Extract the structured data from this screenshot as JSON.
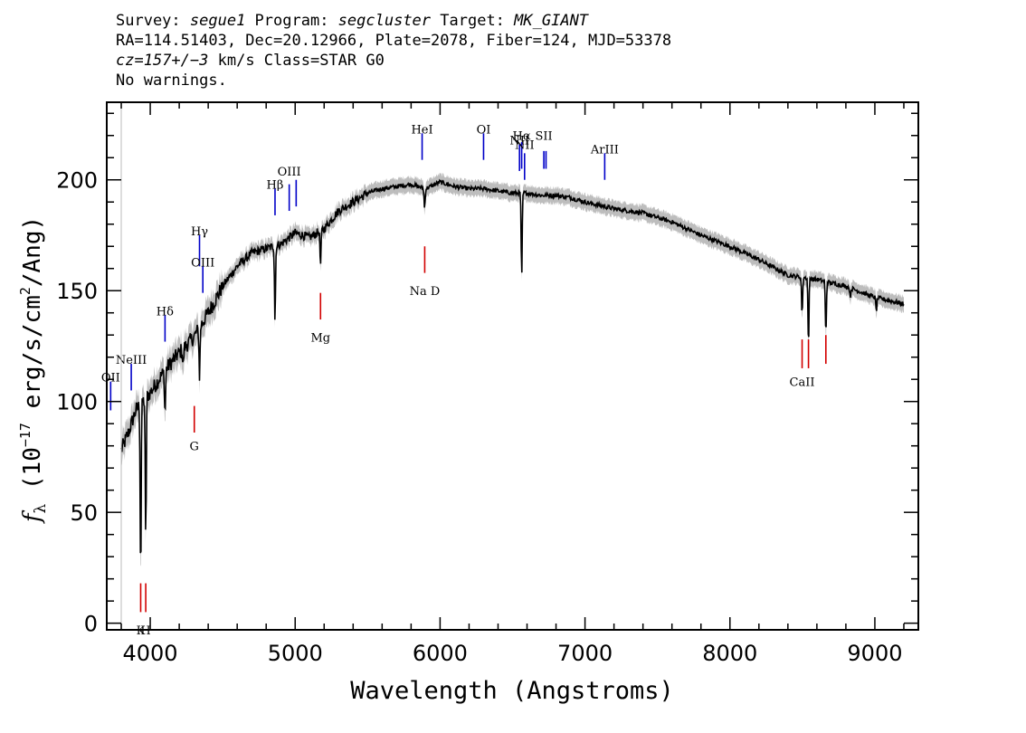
{
  "header": {
    "survey_label": "Survey: ",
    "survey": "segue1",
    "program_label": " Program: ",
    "program": "segcluster",
    "target_label": " Target: ",
    "target": "MK_GIANT",
    "line2": "RA=114.51403, Dec=20.12966, Plate=2078, Fiber=124, MJD=53378",
    "cz_label": "cz=",
    "cz_value": "157+/−3",
    "cz_rest": " km/s Class=STAR G0",
    "warnings": "No warnings."
  },
  "chart_data": {
    "type": "line",
    "xlabel": "Wavelength (Angstroms)",
    "ylabel": "fλ (10⁻¹⁷ erg/s/cm²/Ang)",
    "ylabel_parts": {
      "f": "f",
      "lambda": "λ",
      "pre": " (10",
      "exp1": "−17",
      "mid": " erg/s/cm",
      "exp2": "2",
      "post": "/Ang)"
    },
    "xlim": [
      3700,
      9300
    ],
    "ylim": [
      -3,
      235
    ],
    "xticks": [
      4000,
      5000,
      6000,
      7000,
      8000,
      9000
    ],
    "yticks": [
      0,
      50,
      100,
      150,
      200
    ],
    "series": [
      {
        "color": "#000000",
        "error_band_color": "#bdbdbd",
        "continuum": [
          [
            3800,
            78
          ],
          [
            3850,
            86
          ],
          [
            3900,
            96
          ],
          [
            4000,
            104
          ],
          [
            4100,
            114
          ],
          [
            4200,
            122
          ],
          [
            4300,
            129
          ],
          [
            4400,
            140
          ],
          [
            4500,
            152
          ],
          [
            4600,
            161
          ],
          [
            4700,
            167
          ],
          [
            4800,
            169
          ],
          [
            4900,
            171
          ],
          [
            5000,
            176
          ],
          [
            5100,
            174
          ],
          [
            5200,
            178
          ],
          [
            5300,
            186
          ],
          [
            5400,
            190
          ],
          [
            5500,
            194
          ],
          [
            5600,
            196
          ],
          [
            5700,
            197
          ],
          [
            5800,
            198
          ],
          [
            5900,
            196
          ],
          [
            6000,
            199
          ],
          [
            6100,
            197
          ],
          [
            6200,
            196
          ],
          [
            6300,
            196
          ],
          [
            6400,
            195
          ],
          [
            6500,
            194
          ],
          [
            6600,
            194
          ],
          [
            6700,
            193
          ],
          [
            6800,
            193
          ],
          [
            6900,
            192
          ],
          [
            7000,
            190
          ],
          [
            7200,
            187
          ],
          [
            7400,
            185
          ],
          [
            7600,
            181
          ],
          [
            7800,
            175
          ],
          [
            8000,
            170
          ],
          [
            8200,
            164
          ],
          [
            8400,
            157
          ],
          [
            8600,
            155
          ],
          [
            8800,
            152
          ],
          [
            9000,
            147
          ],
          [
            9200,
            144
          ]
        ],
        "absorption": [
          [
            3934,
            77
          ],
          [
            3969,
            64
          ],
          [
            4102,
            20
          ],
          [
            4227,
            8
          ],
          [
            4340,
            22
          ],
          [
            4861,
            34
          ],
          [
            5175,
            16
          ],
          [
            5893,
            9
          ],
          [
            6563,
            38
          ],
          [
            8498,
            17
          ],
          [
            8542,
            30
          ],
          [
            8662,
            24
          ],
          [
            8830,
            4
          ],
          [
            9010,
            6
          ]
        ]
      }
    ],
    "annotations": {
      "emission_color": "#0000c8",
      "absorption_color": "#d20000",
      "emission": [
        {
          "label": "OII",
          "wavelength": 3727,
          "y0": 96,
          "y1": 109,
          "label_y": 111
        },
        {
          "label": "NeIII",
          "wavelength": 3869,
          "y0": 105,
          "y1": 117,
          "label_y": 119
        },
        {
          "label": "Hδ",
          "wavelength": 4102,
          "y0": 127,
          "y1": 139,
          "label_y": 141
        },
        {
          "label": "Hγ",
          "wavelength": 4340,
          "y0": 161,
          "y1": 175,
          "label_y": 177
        },
        {
          "label": "OIII",
          "wavelength": 4363,
          "y0": 149,
          "y1": 161,
          "label_y": 163
        },
        {
          "label": "Hβ",
          "wavelength": 4861,
          "y0": 184,
          "y1": 196,
          "label_y": 198
        },
        {
          "label": "OIII",
          "wavelength": 4959,
          "y0": 186,
          "y1": 198,
          "label_y": 204
        },
        {
          "label": "OIII",
          "wavelength": 5007,
          "y0": 188,
          "y1": 200,
          "label_y": null
        },
        {
          "label": "HeI",
          "wavelength": 5876,
          "y0": 209,
          "y1": 221,
          "label_y": 223
        },
        {
          "label": "OI",
          "wavelength": 6300,
          "y0": 209,
          "y1": 221,
          "label_y": 223
        },
        {
          "label": "NII",
          "wavelength": 6548,
          "y0": 204,
          "y1": 216,
          "label_y": 218
        },
        {
          "label": "Hα",
          "wavelength": 6563,
          "y0": 205,
          "y1": 217,
          "label_y": 220
        },
        {
          "label": "NII",
          "wavelength": 6583,
          "y0": 200,
          "y1": 212,
          "label_y": 216
        },
        {
          "label": "SII",
          "wavelength": 6716,
          "y0": 205,
          "y1": 213,
          "label_y": 220
        },
        {
          "label": "SII",
          "wavelength": 6731,
          "y0": 205,
          "y1": 213,
          "label_y": null
        },
        {
          "label": "ArIII",
          "wavelength": 7136,
          "y0": 200,
          "y1": 212,
          "label_y": 214
        }
      ],
      "absorption": [
        {
          "label": "K",
          "wavelength": 3934,
          "y0": 5,
          "y1": 18,
          "label_y": -3
        },
        {
          "label": "H",
          "wavelength": 3969,
          "y0": 5,
          "y1": 18,
          "label_y": -3
        },
        {
          "label": "G",
          "wavelength": 4304,
          "y0": 86,
          "y1": 98,
          "label_y": 80
        },
        {
          "label": "Mg",
          "wavelength": 5175,
          "y0": 137,
          "y1": 149,
          "label_y": 129
        },
        {
          "label": "Na D",
          "wavelength": 5894,
          "y0": 158,
          "y1": 170,
          "label_y": 150
        },
        {
          "label": "CaII",
          "wavelength": 8498,
          "y0": 115,
          "y1": 128,
          "label_y": 109
        },
        {
          "label": "CaII",
          "wavelength": 8542,
          "y0": 115,
          "y1": 128,
          "label_y": null
        },
        {
          "label": "CaII",
          "wavelength": 8662,
          "y0": 117,
          "y1": 130,
          "label_y": null
        }
      ]
    }
  }
}
